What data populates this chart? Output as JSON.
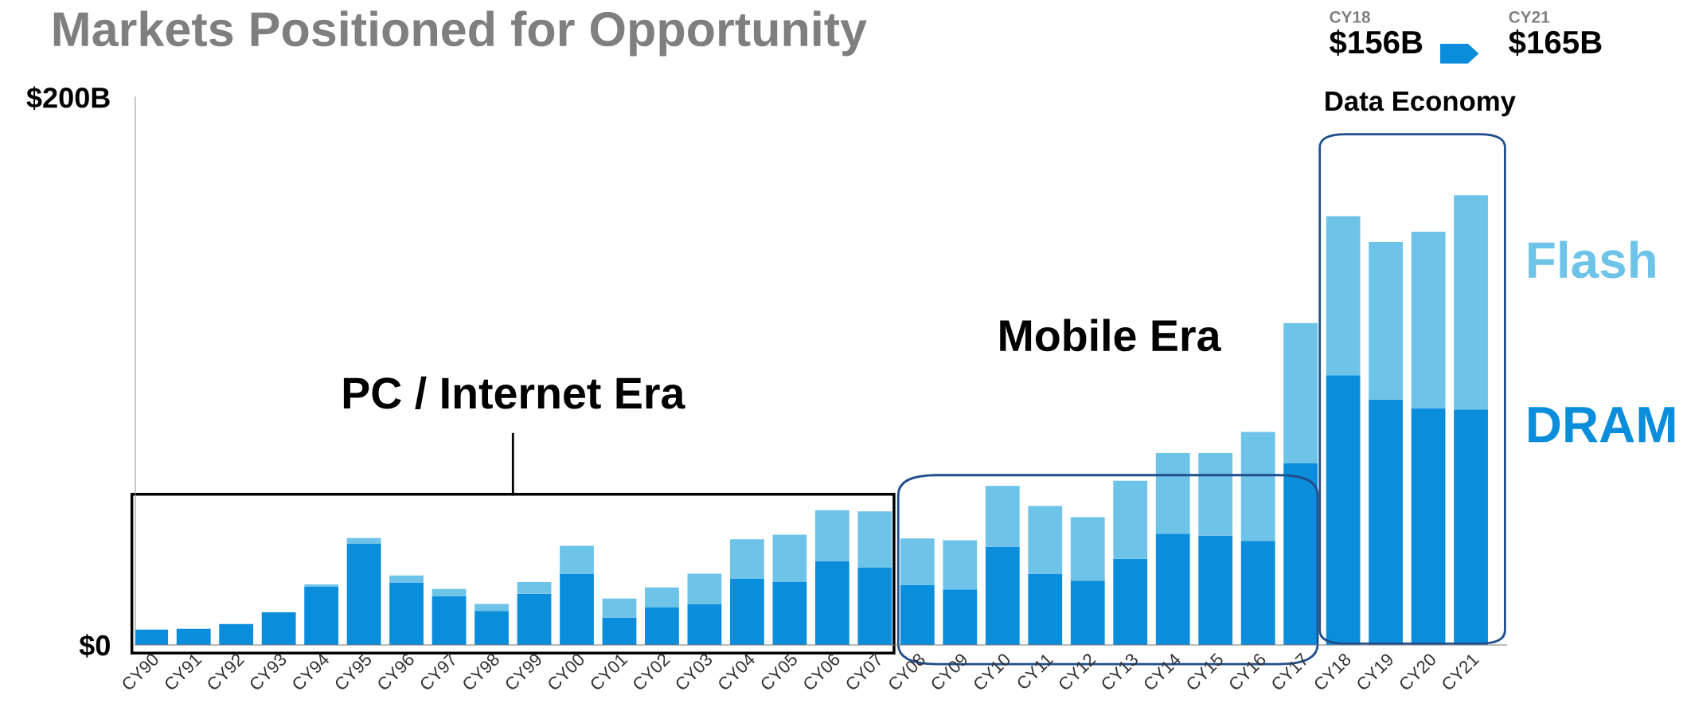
{
  "chart_data": {
    "type": "bar",
    "title": "Markets Positioned for Opportunity",
    "stacked": true,
    "categories": [
      "CY90",
      "CY91",
      "CY92",
      "CY93",
      "CY94",
      "CY95",
      "CY96",
      "CY97",
      "CY98",
      "CY99",
      "CY00",
      "CY01",
      "CY02",
      "CY03",
      "CY04",
      "CY05",
      "CY06",
      "CY07",
      "CY08",
      "CY09",
      "CY10",
      "CY11",
      "CY12",
      "CY13",
      "CY14",
      "CY15",
      "CY16",
      "CY17",
      "CY18",
      "CY19",
      "CY20",
      "CY21"
    ],
    "series": [
      {
        "name": "DRAM",
        "color": "#0a8ddb",
        "values": [
          5.6,
          5.9,
          7.6,
          11.9,
          21.2,
          37.1,
          22.8,
          17.8,
          12.4,
          18.7,
          26.0,
          10.0,
          13.7,
          15.0,
          24.1,
          23.0,
          30.6,
          28.2,
          21.8,
          20.3,
          35.9,
          26.0,
          23.5,
          31.5,
          40.6,
          39.9,
          38.0,
          66.3,
          98.5,
          89.6,
          86.4,
          86.0
        ]
      },
      {
        "name": "Flash",
        "color": "#6ec3e8",
        "values": [
          0,
          0,
          0,
          0,
          0.9,
          1.9,
          2.6,
          2.6,
          2.6,
          4.3,
          10.2,
          6.9,
          7.3,
          11.0,
          14.5,
          17.3,
          18.6,
          20.6,
          17.1,
          17.9,
          22.2,
          24.7,
          23.2,
          28.5,
          29.5,
          30.2,
          39.8,
          51.2,
          58.1,
          57.5,
          64.5,
          78.2
        ]
      }
    ],
    "ylim": [
      0,
      200
    ],
    "yticks": [
      {
        "value": 0,
        "label": "$0"
      },
      {
        "value": 200,
        "label": "$200B"
      }
    ],
    "annotations": [
      "PC / Internet Era",
      "Mobile Era",
      "Data Economy",
      "CY18",
      "$156B",
      "CY21",
      "$165B"
    ]
  }
}
